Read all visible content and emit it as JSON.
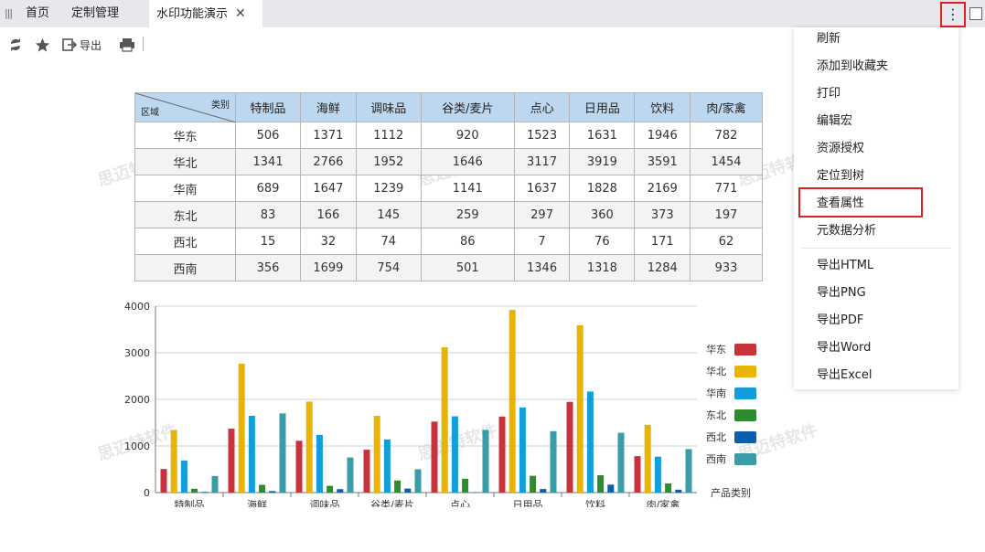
{
  "tabs": [
    {
      "label": "首页"
    },
    {
      "label": "定制管理"
    },
    {
      "label": "水印功能演示"
    }
  ],
  "toolbar": {
    "export_label": "导出"
  },
  "watermark_text": "思迈特软件",
  "table": {
    "corner_top": "类别",
    "corner_bottom": "区域",
    "columns": [
      "特制品",
      "海鲜",
      "调味品",
      "谷类/麦片",
      "点心",
      "日用品",
      "饮料",
      "肉/家禽"
    ],
    "rows": [
      {
        "region": "华东",
        "values": [
          506,
          1371,
          1112,
          920,
          1523,
          1631,
          1946,
          782
        ]
      },
      {
        "region": "华北",
        "values": [
          1341,
          2766,
          1952,
          1646,
          3117,
          3919,
          3591,
          1454
        ]
      },
      {
        "region": "华南",
        "values": [
          689,
          1647,
          1239,
          1141,
          1637,
          1828,
          2169,
          771
        ]
      },
      {
        "region": "东北",
        "values": [
          83,
          166,
          145,
          259,
          297,
          360,
          373,
          197
        ]
      },
      {
        "region": "西北",
        "values": [
          15,
          32,
          74,
          86,
          7,
          76,
          171,
          62
        ]
      },
      {
        "region": "西南",
        "values": [
          356,
          1699,
          754,
          501,
          1346,
          1318,
          1284,
          933
        ]
      }
    ]
  },
  "chart_data": {
    "type": "bar",
    "categories": [
      "特制品",
      "海鲜",
      "调味品",
      "谷类/麦片",
      "点心",
      "日用品",
      "饮料",
      "肉/家禽"
    ],
    "series": [
      {
        "name": "华东",
        "color": "#c8323a",
        "values": [
          506,
          1371,
          1112,
          920,
          1523,
          1631,
          1946,
          782
        ]
      },
      {
        "name": "华北",
        "color": "#e8b400",
        "values": [
          1341,
          2766,
          1952,
          1646,
          3117,
          3919,
          3591,
          1454
        ]
      },
      {
        "name": "华南",
        "color": "#119fdb",
        "values": [
          689,
          1647,
          1239,
          1141,
          1637,
          1828,
          2169,
          771
        ]
      },
      {
        "name": "东北",
        "color": "#2e8b2e",
        "values": [
          83,
          166,
          145,
          259,
          297,
          360,
          373,
          197
        ]
      },
      {
        "name": "西北",
        "color": "#0d5fa8",
        "values": [
          15,
          32,
          74,
          86,
          7,
          76,
          171,
          62
        ]
      },
      {
        "name": "西南",
        "color": "#3a9ca8",
        "values": [
          356,
          1699,
          754,
          501,
          1346,
          1318,
          1284,
          933
        ]
      }
    ],
    "yticks": [
      0,
      1000,
      2000,
      3000,
      4000
    ],
    "ylim": [
      0,
      4000
    ],
    "xlabel": "产品类别",
    "ylabel": "",
    "grid": true,
    "legend": "right"
  },
  "menu": {
    "group1": [
      "刷新",
      "添加到收藏夹",
      "打印",
      "编辑宏",
      "资源授权",
      "定位到树",
      "查看属性",
      "元数据分析"
    ],
    "group2": [
      "导出HTML",
      "导出PNG",
      "导出PDF",
      "导出Word",
      "导出Excel"
    ]
  },
  "icons": {
    "refresh": "refresh-icon",
    "favorite": "star-icon",
    "export": "export-icon",
    "print": "print-icon",
    "more": "more-vertical-icon"
  }
}
